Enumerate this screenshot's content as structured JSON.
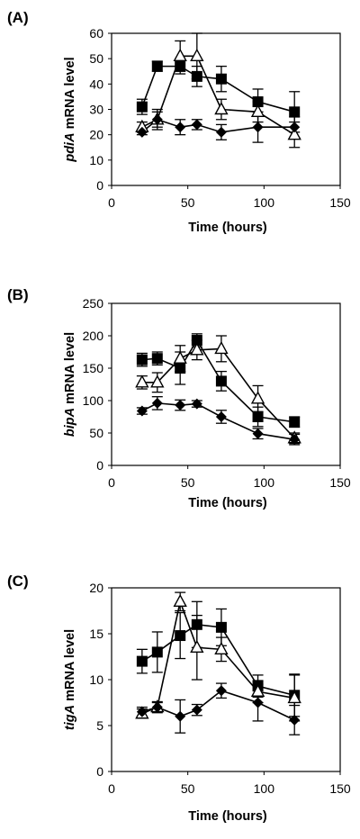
{
  "chart_data": [
    {
      "type": "line",
      "panel_label": "(A)",
      "ylabel_italic": "pdiA",
      "ylabel_rest": " mRNA level",
      "xlabel": "Time (hours)",
      "xlim": [
        0,
        150
      ],
      "ylim": [
        0,
        60
      ],
      "x_ticks": [
        "0",
        "50",
        "100",
        "150"
      ],
      "y_ticks": [
        "0",
        "10",
        "20",
        "30",
        "40",
        "50",
        "60"
      ],
      "grid": false,
      "series": [
        {
          "marker": "square",
          "x": [
            20,
            30,
            45,
            56,
            72,
            96,
            120
          ],
          "y": [
            31,
            47,
            47,
            43,
            42,
            33,
            29
          ],
          "err": [
            3,
            2,
            3,
            4,
            5,
            5,
            8
          ]
        },
        {
          "marker": "triangle-open",
          "x": [
            20,
            30,
            45,
            56,
            72,
            96,
            120
          ],
          "y": [
            23,
            26,
            51,
            51,
            30,
            29,
            20
          ],
          "err": [
            2,
            4,
            6,
            9,
            4,
            4,
            5
          ]
        },
        {
          "marker": "diamond",
          "x": [
            20,
            30,
            45,
            56,
            72,
            96,
            120
          ],
          "y": [
            21,
            26,
            23,
            24,
            21,
            23,
            23
          ],
          "err": [
            1,
            3,
            3,
            2,
            3,
            6,
            4
          ]
        }
      ]
    },
    {
      "type": "line",
      "panel_label": "(B)",
      "ylabel_italic": "bipA",
      "ylabel_rest": " mRNA level",
      "xlabel": "Time (hours)",
      "xlim": [
        0,
        150
      ],
      "ylim": [
        0,
        250
      ],
      "x_ticks": [
        "0",
        "50",
        "100",
        "150"
      ],
      "y_ticks": [
        "0",
        "50",
        "100",
        "150",
        "200",
        "250"
      ],
      "grid": false,
      "series": [
        {
          "marker": "square",
          "x": [
            20,
            30,
            45,
            56,
            72,
            96,
            120
          ],
          "y": [
            163,
            165,
            150,
            193,
            130,
            75,
            67
          ],
          "err": [
            10,
            10,
            25,
            10,
            15,
            15,
            8
          ]
        },
        {
          "marker": "triangle-open",
          "x": [
            20,
            30,
            45,
            56,
            72,
            96,
            120
          ],
          "y": [
            128,
            128,
            165,
            178,
            180,
            103,
            42
          ],
          "err": [
            10,
            15,
            20,
            15,
            20,
            20,
            8
          ]
        },
        {
          "marker": "diamond",
          "x": [
            20,
            30,
            45,
            56,
            72,
            96,
            120
          ],
          "y": [
            84,
            96,
            93,
            95,
            75,
            49,
            40
          ],
          "err": [
            5,
            10,
            8,
            5,
            10,
            8,
            8
          ]
        }
      ]
    },
    {
      "type": "line",
      "panel_label": "(C)",
      "ylabel_italic": "tigA",
      "ylabel_rest": " mRNA level",
      "xlabel": "Time (hours)",
      "xlim": [
        0,
        150
      ],
      "ylim": [
        0,
        20
      ],
      "x_ticks": [
        "0",
        "50",
        "100",
        "150"
      ],
      "y_ticks": [
        "0",
        "5",
        "10",
        "15",
        "20"
      ],
      "grid": false,
      "series": [
        {
          "marker": "square",
          "x": [
            20,
            30,
            45,
            56,
            72,
            96,
            120
          ],
          "y": [
            12,
            13,
            14.8,
            16,
            15.7,
            9.3,
            8.3
          ],
          "err": [
            1.3,
            2.2,
            2.5,
            2.5,
            2,
            1.2,
            2.3
          ]
        },
        {
          "marker": "triangle-open",
          "x": [
            20,
            30,
            45,
            56,
            72,
            96,
            120
          ],
          "y": [
            6.3,
            7,
            18.5,
            13.5,
            13.3,
            8.7,
            8
          ],
          "err": [
            0.5,
            0.6,
            1,
            3.5,
            1.3,
            1.2,
            2.5
          ]
        },
        {
          "marker": "diamond",
          "x": [
            20,
            30,
            45,
            56,
            72,
            96,
            120
          ],
          "y": [
            6.5,
            7,
            6,
            6.7,
            8.8,
            7.5,
            5.6
          ],
          "err": [
            0.5,
            0.5,
            1.8,
            0.6,
            0.8,
            2,
            1.6
          ]
        }
      ]
    }
  ]
}
